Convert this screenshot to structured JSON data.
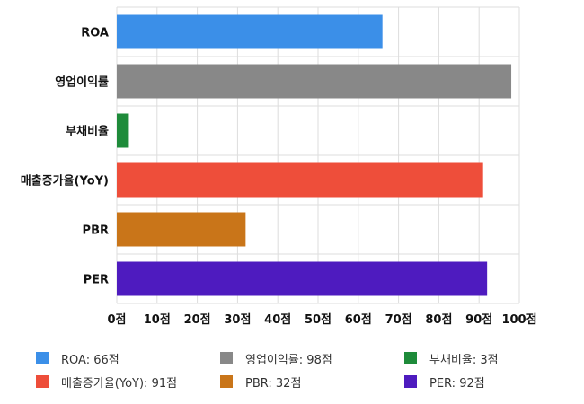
{
  "chart_data": {
    "type": "bar",
    "orientation": "horizontal",
    "categories": [
      "ROA",
      "영업이익률",
      "부채비율",
      "매출증가율(YoY)",
      "PBR",
      "PER"
    ],
    "values": [
      66,
      98,
      3,
      91,
      32,
      92
    ],
    "colors": [
      "#3b8fe8",
      "#888888",
      "#1e8b3a",
      "#ee4e3a",
      "#c97519",
      "#4e1bbf"
    ],
    "xlim": [
      0,
      100
    ],
    "xticks": [
      0,
      10,
      20,
      30,
      40,
      50,
      60,
      70,
      80,
      90,
      100
    ],
    "xtick_labels": [
      "0점",
      "10점",
      "20점",
      "30점",
      "40점",
      "50점",
      "60점",
      "70점",
      "80점",
      "90점",
      "100점"
    ],
    "grid": true,
    "legend_position": "bottom",
    "legend": [
      {
        "label": "ROA: 66점",
        "color": "#3b8fe8"
      },
      {
        "label": "영업이익률: 98점",
        "color": "#888888"
      },
      {
        "label": "부채비율: 3점",
        "color": "#1e8b3a"
      },
      {
        "label": "매출증가율(YoY): 91점",
        "color": "#ee4e3a"
      },
      {
        "label": "PBR: 32점",
        "color": "#c97519"
      },
      {
        "label": "PER: 92점",
        "color": "#4e1bbf"
      }
    ]
  }
}
